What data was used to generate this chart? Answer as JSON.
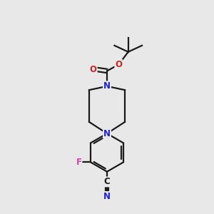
{
  "bg_color": "#e8e8e8",
  "bond_color": "#1a1a1a",
  "N_color": "#2222cc",
  "O_color": "#cc2222",
  "F_color": "#cc44aa",
  "C_color": "#1a1a1a",
  "bond_width": 1.6,
  "font_size_atom": 8.5,
  "fig_bg": "#e8e8e8",
  "xlim": [
    0,
    10
  ],
  "ylim": [
    0,
    10
  ]
}
